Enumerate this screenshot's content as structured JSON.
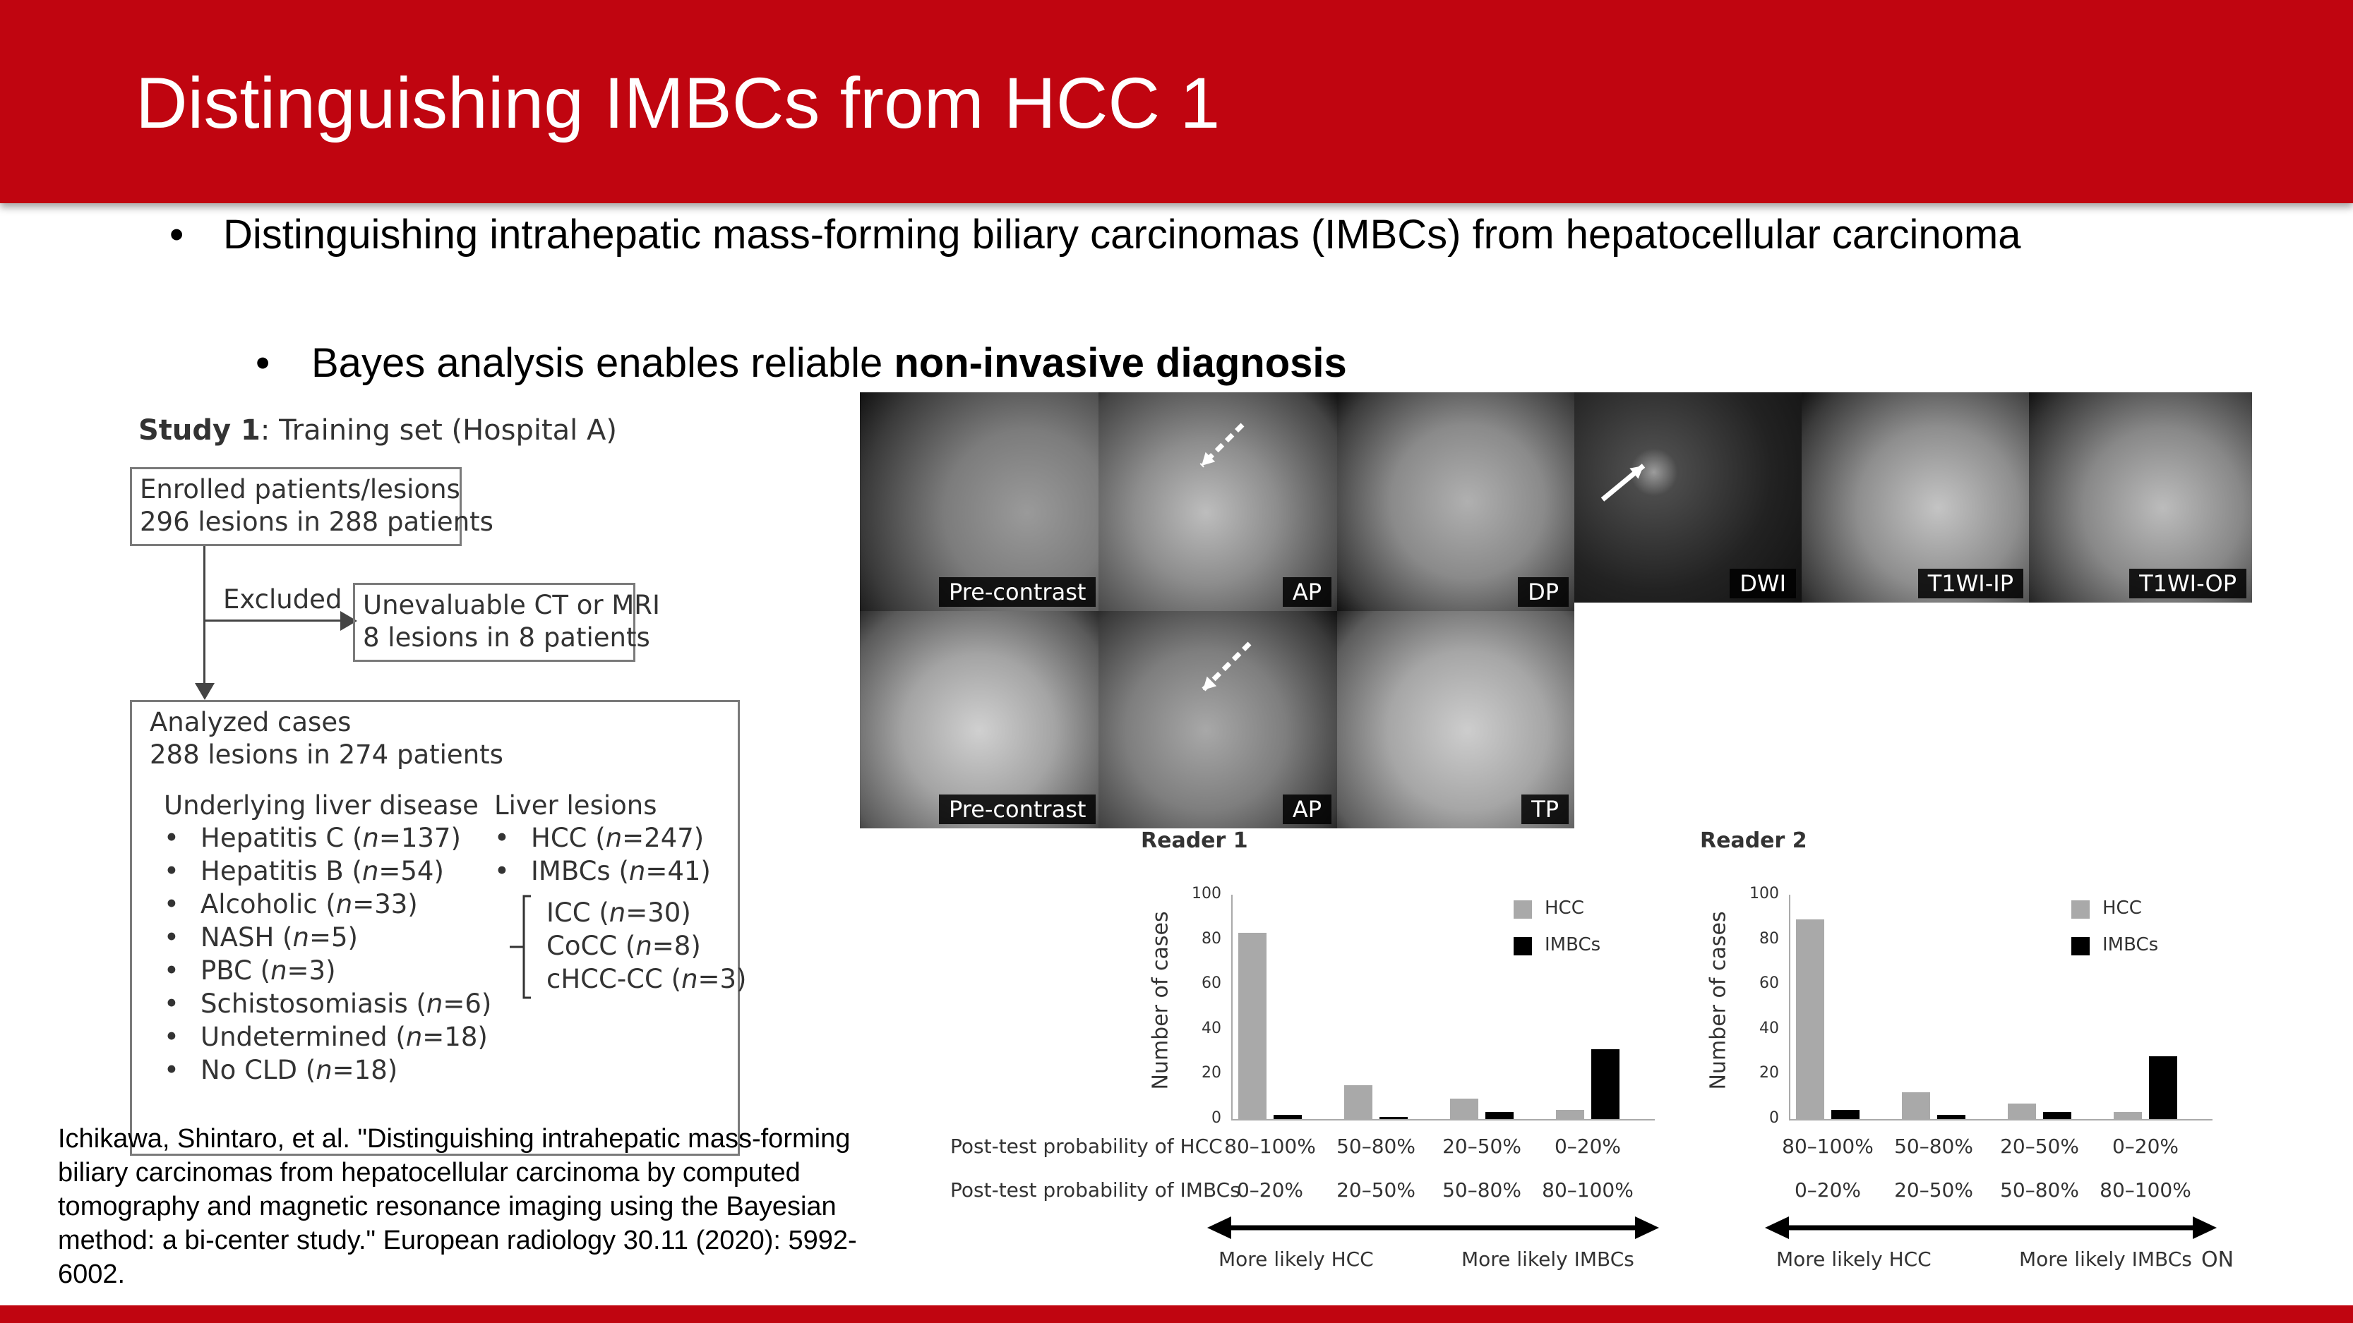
{
  "slide": {
    "title": "Distinguishing IMBCs from HCC 1",
    "bullet1": "Distinguishing intrahepatic mass-forming biliary carcinomas (IMBCs) from hepatocellular carcinoma",
    "bullet2_prefix": "Bayes analysis enables reliable ",
    "bullet2_bold": "non-invasive diagnosis",
    "citation": "Ichikawa, Shintaro, et al. \"Distinguishing intrahepatic mass-forming biliary carcinomas from hepatocellular carcinoma by computed tomography and magnetic resonance imaging using the Bayesian method: a bi-center study.\" European radiology 30.11 (2020): 5992-6002.",
    "partial_text": "ON"
  },
  "flow": {
    "study_bold": "Study 1",
    "study_rest": ": Training set (Hospital A)",
    "enrolled_1": "Enrolled patients/lesions",
    "enrolled_2": "296 lesions in 288 patients",
    "excluded": "Excluded",
    "unevaluable_1": "Unevaluable CT or MRI",
    "unevaluable_2": "8 lesions in 8 patients",
    "analyzed_1": "Analyzed cases",
    "analyzed_2": "288 lesions in 274 patients",
    "disease_header": "Underlying liver disease",
    "disease_items": [
      {
        "name": "Hepatitis C (",
        "n": "n",
        "val": "=137)"
      },
      {
        "name": "Hepatitis B (",
        "n": "n",
        "val": "=54)"
      },
      {
        "name": "Alcoholic (",
        "n": "n",
        "val": "=33)"
      },
      {
        "name": "NASH (",
        "n": "n",
        "val": "=5)"
      },
      {
        "name": "PBC (",
        "n": "n",
        "val": "=3)"
      },
      {
        "name": "Schistosomiasis (",
        "n": "n",
        "val": "=6)"
      },
      {
        "name": "Undetermined (",
        "n": "n",
        "val": "=18)"
      },
      {
        "name": "No CLD (",
        "n": "n",
        "val": "=18)"
      }
    ],
    "lesions_header": "Liver lesions",
    "lesion_items": [
      {
        "name": "HCC (",
        "n": "n",
        "val": "=247)"
      },
      {
        "name": "IMBCs (",
        "n": "n",
        "val": "=41)"
      }
    ],
    "sub_items": [
      {
        "name": "ICC (",
        "n": "n",
        "val": "=30)"
      },
      {
        "name": "CoCC (",
        "n": "n",
        "val": "=8)"
      },
      {
        "name": "cHCC-CC (",
        "n": "n",
        "val": "=3)"
      }
    ],
    "bullet_char": "•"
  },
  "images": {
    "top_row": [
      "Pre-contrast",
      "AP",
      "DP",
      "DWI",
      "T1WI-IP",
      "T1WI-OP"
    ],
    "bottom_row": [
      "Pre-contrast",
      "AP",
      "TP"
    ]
  },
  "colors": {
    "brand_red": "#c00510",
    "hcc_bar": "#a9a9a9",
    "imbc_bar": "#000000"
  },
  "chart_rows": {
    "hcc_label": "Post-test probability of HCC",
    "imbc_label": "Post-test probability of IMBCs",
    "hcc_categories": [
      "80–100%",
      "50–80%",
      "20–50%",
      "0–20%"
    ],
    "imbc_categories": [
      "0–20%",
      "20–50%",
      "50–80%",
      "80–100%"
    ],
    "more_hcc": "More likely HCC",
    "more_imbc": "More likely IMBCs"
  },
  "chart_data": [
    {
      "type": "bar",
      "title": "Reader 1",
      "ylabel": "Number of cases",
      "ylim": [
        0,
        100
      ],
      "yticks": [
        0,
        20,
        40,
        60,
        80,
        100
      ],
      "categories": [
        "80–100%",
        "50–80%",
        "20–50%",
        "0–20%"
      ],
      "legend_position": "top-right",
      "series": [
        {
          "name": "HCC",
          "values": [
            83,
            15,
            9,
            4
          ]
        },
        {
          "name": "IMBCs",
          "values": [
            2,
            1,
            3,
            31
          ]
        }
      ]
    },
    {
      "type": "bar",
      "title": "Reader 2",
      "ylabel": "Number of cases",
      "ylim": [
        0,
        100
      ],
      "yticks": [
        0,
        20,
        40,
        60,
        80,
        100
      ],
      "categories": [
        "80–100%",
        "50–80%",
        "20–50%",
        "0–20%"
      ],
      "legend_position": "top-right",
      "series": [
        {
          "name": "HCC",
          "values": [
            89,
            12,
            7,
            3
          ]
        },
        {
          "name": "IMBCs",
          "values": [
            4,
            2,
            3,
            28
          ]
        }
      ]
    }
  ]
}
